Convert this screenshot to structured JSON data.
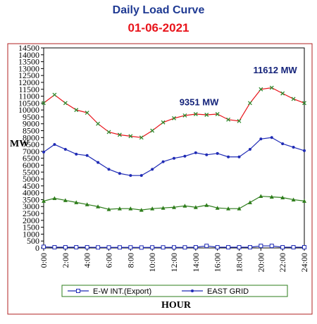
{
  "chart_data": {
    "type": "line",
    "title": "Daily Load Curve",
    "subtitle": "01-06-2021",
    "xlabel": "HOUR",
    "ylabel": "MW",
    "xlim": [
      0,
      24
    ],
    "ylim": [
      0,
      14500
    ],
    "x_ticks": [
      "0:00",
      "2:00",
      "4:00",
      "6:00",
      "8:00",
      "10:00",
      "12:00",
      "14:00",
      "16:00",
      "18:00",
      "20:00",
      "22:00",
      "24:00"
    ],
    "y_ticks": [
      0,
      500,
      1000,
      1500,
      2000,
      2500,
      3000,
      3500,
      4000,
      4500,
      5000,
      5500,
      6000,
      6500,
      7000,
      7500,
      8000,
      8500,
      9000,
      9500,
      10000,
      10500,
      11000,
      11500,
      12000,
      12500,
      13000,
      13500,
      14000,
      14500
    ],
    "x": [
      0,
      1,
      2,
      3,
      4,
      5,
      6,
      7,
      8,
      9,
      10,
      11,
      12,
      13,
      14,
      15,
      16,
      17,
      18,
      19,
      20,
      21,
      22,
      23,
      24
    ],
    "series": [
      {
        "name": "",
        "color": "#e8141b",
        "marker": "x-green",
        "values": [
          10500,
          11100,
          10500,
          10000,
          9800,
          9000,
          8400,
          8200,
          8100,
          8000,
          8500,
          9100,
          9400,
          9600,
          9700,
          9650,
          9700,
          9300,
          9200,
          10500,
          11500,
          11612,
          11200,
          10800,
          10500
        ]
      },
      {
        "name": "EAST GRID",
        "color": "#1f2bb5",
        "marker": "dot",
        "values": [
          6950,
          7500,
          7150,
          6800,
          6700,
          6200,
          5700,
          5400,
          5250,
          5250,
          5700,
          6250,
          6500,
          6650,
          6900,
          6750,
          6850,
          6600,
          6600,
          7150,
          7900,
          8000,
          7550,
          7300,
          7050
        ]
      },
      {
        "name": "",
        "color": "#2e7d1b",
        "marker": "triangle",
        "values": [
          3400,
          3600,
          3450,
          3300,
          3150,
          3000,
          2800,
          2850,
          2850,
          2750,
          2850,
          2900,
          2950,
          3050,
          2950,
          3100,
          2900,
          2850,
          2850,
          3300,
          3750,
          3700,
          3650,
          3500,
          3400
        ]
      },
      {
        "name": "E-W INT.(Export)",
        "color": "#1f2bb5",
        "marker": "square",
        "values": [
          80,
          50,
          50,
          50,
          50,
          40,
          40,
          40,
          40,
          30,
          40,
          40,
          40,
          40,
          50,
          150,
          50,
          50,
          50,
          50,
          150,
          150,
          50,
          50,
          50
        ]
      }
    ],
    "annotations": [
      {
        "text": "9351 MW",
        "x": 12.5,
        "y": 10350
      },
      {
        "text": "11612 MW",
        "x": 19.3,
        "y": 12650
      }
    ],
    "legend": {
      "position": "bottom",
      "items": [
        {
          "label": "E-W INT.(Export)",
          "color": "#1f2bb5",
          "marker": "square"
        },
        {
          "label": "EAST GRID",
          "color": "#1f2bb5",
          "marker": "dot"
        }
      ]
    },
    "grid": false
  },
  "colors": {
    "frame": "#b22222",
    "legend_border": "#2e7d1b",
    "annotation": "#14237a"
  }
}
